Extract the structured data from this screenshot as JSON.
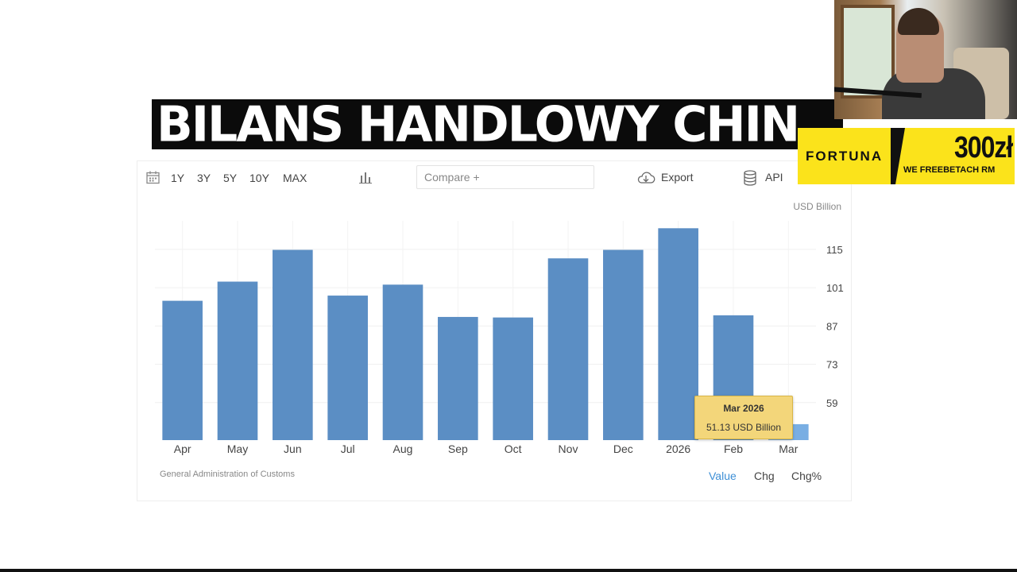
{
  "headline": "BILANS HANDLOWY CHIN",
  "toolbar": {
    "ranges": [
      "1Y",
      "3Y",
      "5Y",
      "10Y",
      "MAX"
    ],
    "compare_placeholder": "Compare +",
    "export_label": "Export",
    "api_label": "API"
  },
  "unit": "USD Billion",
  "source": "General Administration of Customs",
  "view_toggles": {
    "value": "Value",
    "chg": "Chg",
    "chg_pct": "Chg%"
  },
  "tooltip": {
    "period": "Mar 2026",
    "value_text": "51.13 USD Billion"
  },
  "sponsor": {
    "brand": "FORTUNA",
    "bonus": "300zł",
    "tagline": "WE FREEBETACH RM"
  },
  "colors": {
    "bar": "#5b8ec4",
    "bar_highlight": "#79aee3",
    "accent": "#3d8fd6",
    "sponsor_yellow": "#fbe31b"
  },
  "chart_data": {
    "type": "bar",
    "categories": [
      "Apr",
      "May",
      "Jun",
      "Jul",
      "Aug",
      "Sep",
      "Oct",
      "Nov",
      "Dec",
      "2026",
      "Feb",
      "Mar"
    ],
    "values": [
      96.2,
      103.2,
      114.8,
      98.1,
      102.1,
      90.3,
      90.1,
      111.7,
      114.8,
      122.7,
      90.9,
      51.13
    ],
    "ylabel": "USD Billion",
    "yticks": [
      59,
      73,
      87,
      101,
      115
    ],
    "ylim": [
      45,
      126
    ],
    "highlight_index": 11,
    "grid": true
  }
}
